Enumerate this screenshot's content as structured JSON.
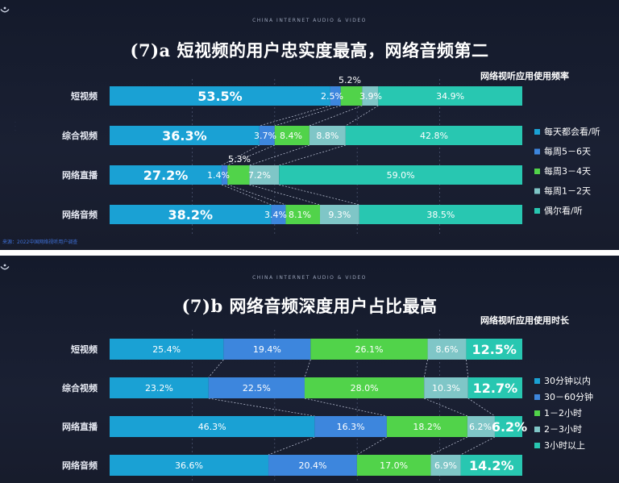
{
  "brand": "CHINA INTERNET AUDIO & VIDEO",
  "colors": [
    "#1aa1d4",
    "#3d86dd",
    "#51d34a",
    "#7fc6c7",
    "#28c7b1"
  ],
  "chart_data": [
    {
      "type": "bar",
      "stacked": true,
      "orientation": "horizontal",
      "title": "(7)a 短视频的用户忠实度最高，网络音频第二",
      "legend_title": "网络视听应用使用频率",
      "categories": [
        "短视频",
        "综合视频",
        "网络直播",
        "网络音频"
      ],
      "series": [
        {
          "name": "每天都会看/听",
          "values": [
            53.5,
            36.3,
            27.2,
            38.2
          ],
          "labels": [
            "53.5%",
            "36.3%",
            "27.2%",
            "38.2%"
          ]
        },
        {
          "name": "每周5－6天",
          "values": [
            2.5,
            3.7,
            1.4,
            3.4
          ],
          "labels": [
            "2.5%",
            "3.7%",
            "1.4%",
            "3.4%"
          ]
        },
        {
          "name": "每周3－4天",
          "values": [
            5.2,
            8.4,
            5.3,
            8.1
          ],
          "labels": [
            "5.2%",
            "8.4%",
            "5.3%",
            "8.1%"
          ]
        },
        {
          "name": "每周1－2天",
          "values": [
            3.9,
            8.8,
            7.2,
            9.3
          ],
          "labels": [
            "3.9%",
            "8.8%",
            "7.2%",
            "9.3%"
          ]
        },
        {
          "name": "偶尔看/听",
          "values": [
            34.9,
            42.8,
            59.0,
            38.5
          ],
          "labels": [
            "34.9%",
            "42.8%",
            "59.0%",
            "38.5%"
          ]
        }
      ],
      "source": "来源：2022中国网络视听用户调查"
    },
    {
      "type": "bar",
      "stacked": true,
      "orientation": "horizontal",
      "title": "(7)b 网络音频深度用户占比最高",
      "legend_title": "网络视听应用使用时长",
      "categories": [
        "短视频",
        "综合视频",
        "网络直播",
        "网络音频"
      ],
      "series": [
        {
          "name": "30分钟以内",
          "values": [
            25.4,
            23.2,
            46.3,
            36.6
          ],
          "labels": [
            "25.4%",
            "23.2%",
            "46.3%",
            "36.6%"
          ]
        },
        {
          "name": "30－60分钟",
          "values": [
            19.4,
            22.5,
            16.3,
            20.4
          ],
          "labels": [
            "19.4%",
            "22.5%",
            "16.3%",
            "20.4%"
          ]
        },
        {
          "name": "1－2小时",
          "values": [
            26.1,
            28.0,
            18.2,
            17.0
          ],
          "labels": [
            "26.1%",
            "28.0%",
            "18.2%",
            "17.0%"
          ]
        },
        {
          "name": "2－3小时",
          "values": [
            8.6,
            10.3,
            6.2,
            6.9
          ],
          "labels": [
            "8.6%",
            "10.3%",
            "6.2%",
            "6.9%"
          ]
        },
        {
          "name": "3小时以上",
          "values": [
            12.5,
            12.7,
            6.2,
            14.2
          ],
          "labels": [
            "12.5%",
            "12.7%",
            "6.2%",
            "14.2%"
          ]
        }
      ]
    }
  ]
}
